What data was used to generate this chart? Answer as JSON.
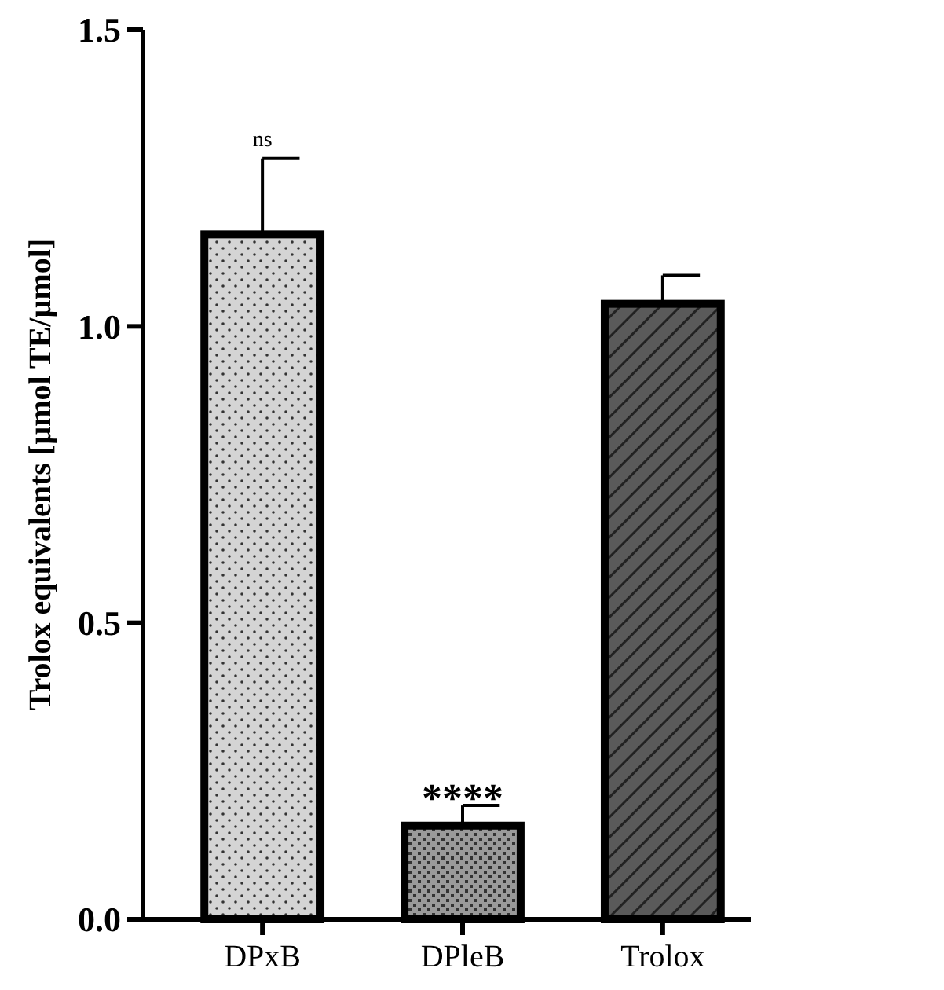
{
  "chart_data": {
    "type": "bar",
    "ylabel": "Trolox equivalents [µmol TE/µmol]",
    "categories": [
      "DPxB",
      "DPleB",
      "Trolox"
    ],
    "values": [
      1.155,
      0.158,
      1.038
    ],
    "errors": [
      0.128,
      0.034,
      0.048
    ],
    "colors": [
      "#d4d4d4",
      "#9a9a9a",
      "#5a5a5a"
    ],
    "ylim": [
      0,
      1.5
    ],
    "yticks": [
      {
        "value": 0,
        "label": "0.0"
      },
      0.5,
      {
        "value": 1,
        "label": "1.0"
      },
      1.5
    ],
    "annotations": [
      {
        "text": "ns",
        "x": "DPxB",
        "y": 1.283
      },
      {
        "text": "****",
        "x": "DPleB",
        "y": 0.192
      }
    ],
    "grid": false
  }
}
